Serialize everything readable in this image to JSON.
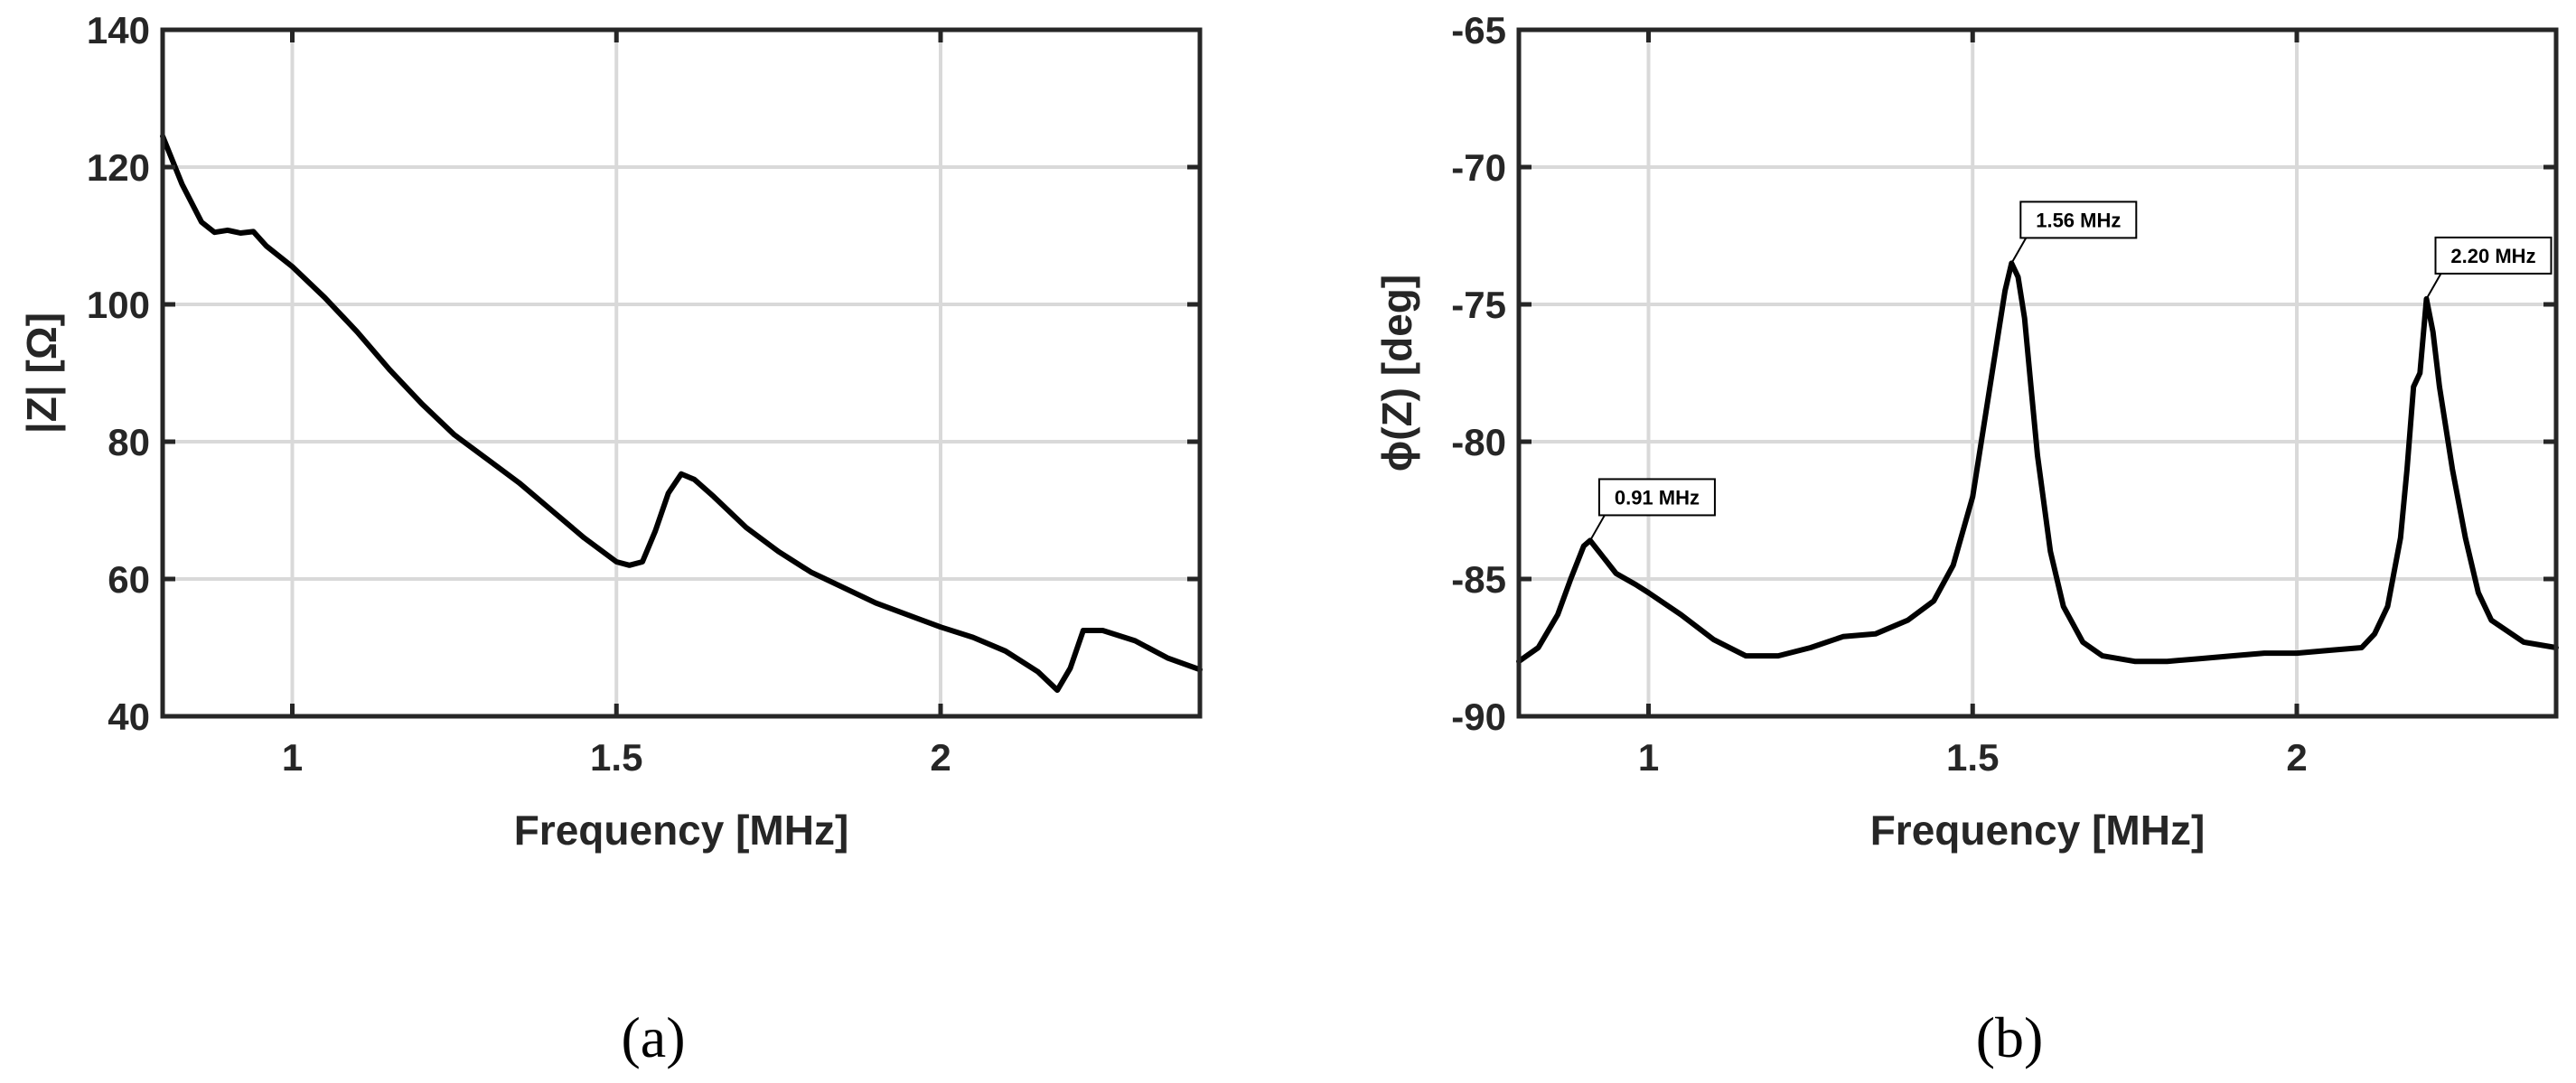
{
  "chart_data": [
    {
      "type": "line",
      "panel_label": "(a)",
      "xlabel": "Frequency [MHz]",
      "ylabel": "|Z| [Ω]",
      "xlim": [
        0.8,
        2.4
      ],
      "ylim": [
        40,
        140
      ],
      "xticks": [
        1,
        1.5,
        2
      ],
      "xtick_labels": [
        "1",
        "1.5",
        "2"
      ],
      "yticks": [
        40,
        60,
        80,
        100,
        120,
        140
      ],
      "ytick_labels": [
        "40",
        "60",
        "80",
        "100",
        "120",
        "140"
      ],
      "grid": true,
      "series": [
        {
          "x": [
            0.8,
            0.83,
            0.86,
            0.88,
            0.9,
            0.92,
            0.94,
            0.96,
            1.0,
            1.05,
            1.1,
            1.15,
            1.2,
            1.25,
            1.3,
            1.35,
            1.4,
            1.45,
            1.5,
            1.52,
            1.54,
            1.56,
            1.58,
            1.6,
            1.62,
            1.65,
            1.7,
            1.75,
            1.8,
            1.9,
            2.0,
            2.05,
            2.1,
            2.15,
            2.18,
            2.2,
            2.22,
            2.25,
            2.3,
            2.35,
            2.4
          ],
          "y": [
            124.5,
            117.5,
            112,
            110.5,
            110.8,
            110.4,
            110.6,
            108.5,
            105.5,
            101,
            96,
            90.5,
            85.5,
            81,
            77.5,
            74,
            70,
            66,
            62.5,
            62,
            62.5,
            67,
            72.5,
            75.3,
            74.5,
            72,
            67.5,
            64,
            61,
            56.5,
            53,
            51.5,
            49.5,
            46.5,
            43.8,
            47,
            52.5,
            52.5,
            51,
            48.5,
            46.8
          ]
        }
      ]
    },
    {
      "type": "line",
      "panel_label": "(b)",
      "xlabel": "Frequency [MHz]",
      "ylabel": "ϕ(Z) [deg]",
      "xlim": [
        0.8,
        2.4
      ],
      "ylim": [
        -90,
        -65
      ],
      "xticks": [
        1,
        1.5,
        2
      ],
      "xtick_labels": [
        "1",
        "1.5",
        "2"
      ],
      "yticks": [
        -90,
        -85,
        -80,
        -75,
        -70,
        -65
      ],
      "ytick_labels": [
        "-90",
        "-85",
        "-80",
        "-75",
        "-70",
        "-65"
      ],
      "grid": true,
      "annotations": [
        {
          "text": "0.91 MHz",
          "x": 0.91,
          "y": -83.6
        },
        {
          "text": "1.56 MHz",
          "x": 1.56,
          "y": -73.5
        },
        {
          "text": "2.20 MHz",
          "x": 2.2,
          "y": -74.8
        }
      ],
      "series": [
        {
          "x": [
            0.8,
            0.83,
            0.86,
            0.88,
            0.9,
            0.91,
            0.93,
            0.95,
            0.98,
            1.0,
            1.05,
            1.1,
            1.15,
            1.2,
            1.25,
            1.3,
            1.35,
            1.4,
            1.44,
            1.47,
            1.5,
            1.52,
            1.54,
            1.55,
            1.56,
            1.57,
            1.58,
            1.59,
            1.6,
            1.62,
            1.64,
            1.67,
            1.7,
            1.75,
            1.8,
            1.85,
            1.9,
            1.95,
            2.0,
            2.05,
            2.1,
            2.12,
            2.14,
            2.16,
            2.17,
            2.18,
            2.19,
            2.2,
            2.21,
            2.22,
            2.24,
            2.26,
            2.28,
            2.3,
            2.35,
            2.4
          ],
          "y": [
            -88,
            -87.5,
            -86.3,
            -85,
            -83.8,
            -83.6,
            -84.2,
            -84.8,
            -85.2,
            -85.5,
            -86.3,
            -87.2,
            -87.8,
            -87.8,
            -87.5,
            -87.1,
            -87,
            -86.5,
            -85.8,
            -84.5,
            -82,
            -79,
            -76,
            -74.5,
            -73.5,
            -74,
            -75.5,
            -78,
            -80.5,
            -84,
            -86,
            -87.3,
            -87.8,
            -88,
            -88,
            -87.9,
            -87.8,
            -87.7,
            -87.7,
            -87.6,
            -87.5,
            -87,
            -86,
            -83.5,
            -81,
            -78,
            -77.5,
            -74.8,
            -76,
            -78,
            -81,
            -83.5,
            -85.5,
            -86.5,
            -87.3,
            -87.5
          ]
        }
      ]
    }
  ]
}
